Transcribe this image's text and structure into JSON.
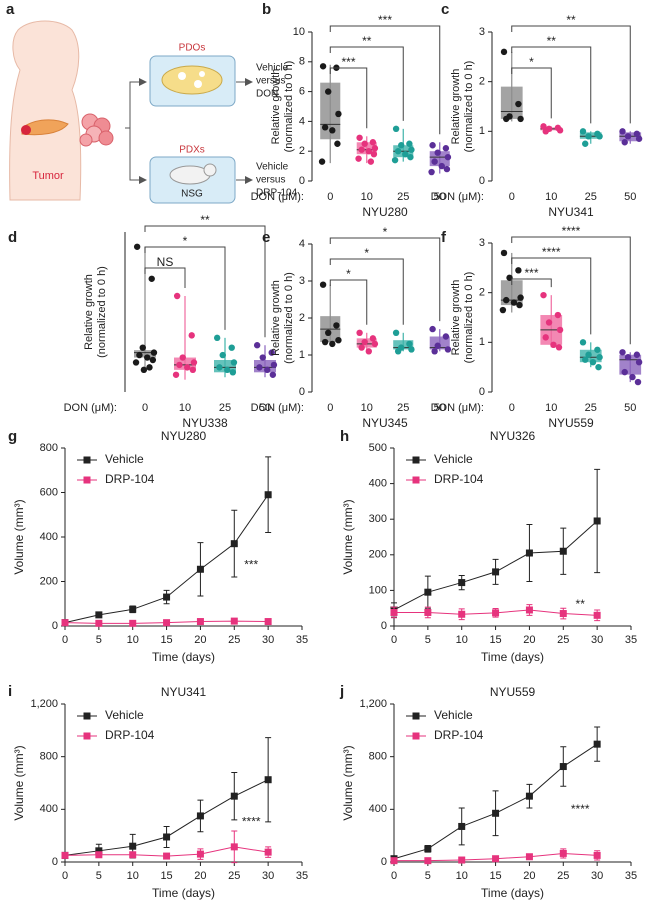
{
  "schematic": {
    "panel_label": "a",
    "tumor_label": "Tumor",
    "pdo": {
      "label": "PDOs",
      "treatment": [
        "Vehicle",
        "versus",
        "DON"
      ]
    },
    "pdx": {
      "label": "PDXs",
      "host": "NSG",
      "treatment": [
        "Vehicle",
        "versus",
        "DRP-104"
      ]
    }
  },
  "chart_data": [
    {
      "type": "box",
      "panel_label": "b",
      "xlabel": "NYU280",
      "category_label": "DON (μM):",
      "categories": [
        "0",
        "10",
        "25",
        "50"
      ],
      "ylabel": [
        "Relative growth",
        "(normalized to 0 h)"
      ],
      "ylim": [
        0,
        10
      ],
      "yticks": [
        0,
        2,
        4,
        6,
        8,
        10
      ],
      "colors": [
        "#8c8c8c",
        "#f06aa0",
        "#3fb3aa",
        "#8a63bd"
      ],
      "point_colors": [
        "#1a1a1a",
        "#e6337d",
        "#1e9e96",
        "#5b2f98"
      ],
      "boxes": [
        {
          "whislo": 1.2,
          "q1": 2.8,
          "med": 3.8,
          "q3": 6.6,
          "whishi": 7.8,
          "points": [
            7.7,
            7.6,
            6.0,
            4.5,
            3.6,
            3.4,
            2.5,
            1.3
          ]
        },
        {
          "whislo": 1.2,
          "q1": 1.8,
          "med": 2.1,
          "q3": 2.6,
          "whishi": 3.0,
          "points": [
            2.9,
            2.6,
            2.5,
            2.2,
            2.1,
            2.0,
            1.8,
            1.5,
            1.3
          ]
        },
        {
          "whislo": 1.3,
          "q1": 1.6,
          "med": 2.0,
          "q3": 2.4,
          "whishi": 3.5,
          "points": [
            3.5,
            2.5,
            2.4,
            2.1,
            2.0,
            1.8,
            1.6,
            1.4
          ]
        },
        {
          "whislo": 0.5,
          "q1": 1.0,
          "med": 1.6,
          "q3": 2.0,
          "whishi": 2.6,
          "points": [
            2.4,
            2.2,
            1.9,
            1.6,
            1.3,
            1.0,
            0.8,
            0.6
          ]
        }
      ],
      "significance": [
        null,
        "***",
        "**",
        "***"
      ]
    },
    {
      "type": "box",
      "panel_label": "c",
      "xlabel": "NYU341",
      "category_label": "DON (μM):",
      "categories": [
        "0",
        "10",
        "25",
        "50"
      ],
      "ylabel": [
        "Relative growth",
        "(normalized to 0 h)"
      ],
      "ylim": [
        0,
        3
      ],
      "yticks": [
        0,
        1,
        2,
        3
      ],
      "colors": [
        "#8c8c8c",
        "#f06aa0",
        "#3fb3aa",
        "#8a63bd"
      ],
      "point_colors": [
        "#1a1a1a",
        "#e6337d",
        "#1e9e96",
        "#5b2f98"
      ],
      "boxes": [
        {
          "whislo": 1.2,
          "q1": 1.25,
          "med": 1.4,
          "q3": 1.9,
          "whishi": 2.6,
          "points": [
            2.6,
            1.55,
            1.3,
            1.25,
            1.25
          ]
        },
        {
          "whislo": 1.0,
          "q1": 1.02,
          "med": 1.05,
          "q3": 1.08,
          "whishi": 1.1,
          "points": [
            1.1,
            1.07,
            1.05,
            1.02,
            1.0
          ]
        },
        {
          "whislo": 0.75,
          "q1": 0.85,
          "med": 0.9,
          "q3": 0.98,
          "whishi": 1.0,
          "points": [
            1.0,
            0.95,
            0.9,
            0.9,
            0.75
          ]
        },
        {
          "whislo": 0.75,
          "q1": 0.8,
          "med": 0.9,
          "q3": 0.98,
          "whishi": 1.0,
          "points": [
            1.0,
            0.95,
            0.9,
            0.85,
            0.78
          ]
        }
      ],
      "significance": [
        null,
        "*",
        "**",
        "**"
      ]
    },
    {
      "type": "box",
      "panel_label": "d",
      "xlabel": "NYU338",
      "category_label": "DON (μM):",
      "categories": [
        "0",
        "10",
        "25",
        "50"
      ],
      "ylabel": [
        "Relative growth",
        "(normalized to 0 h)"
      ],
      "ylim": [
        0,
        6.5
      ],
      "colors": [
        "#8c8c8c",
        "#f06aa0",
        "#3fb3aa",
        "#8a63bd"
      ],
      "point_colors": [
        "#1a1a1a",
        "#e6337d",
        "#1e9e96",
        "#5b2f98"
      ],
      "boxes": [
        {
          "whislo": 0.9,
          "q1": 1.4,
          "med": 1.6,
          "q3": 1.7,
          "whishi": 5.9,
          "points": [
            5.9,
            4.6,
            1.8,
            1.6,
            1.5,
            1.4,
            1.3,
            1.2,
            1.0,
            0.9
          ]
        },
        {
          "whislo": 0.5,
          "q1": 0.9,
          "med": 1.1,
          "q3": 1.4,
          "whishi": 3.9,
          "points": [
            3.9,
            2.3,
            1.4,
            1.2,
            1.1,
            1.0,
            0.9,
            0.7
          ]
        },
        {
          "whislo": 0.6,
          "q1": 0.8,
          "med": 1.0,
          "q3": 1.3,
          "whishi": 2.2,
          "points": [
            2.2,
            1.8,
            1.5,
            1.2,
            1.0,
            0.9,
            0.8
          ]
        },
        {
          "whislo": 0.6,
          "q1": 0.8,
          "med": 1.0,
          "q3": 1.3,
          "whishi": 1.9,
          "points": [
            1.9,
            1.6,
            1.4,
            1.1,
            1.0,
            0.9,
            0.7
          ]
        }
      ],
      "significance": [
        null,
        "NS",
        "*",
        "**"
      ]
    },
    {
      "type": "box",
      "panel_label": "e",
      "xlabel": "NYU345",
      "category_label": "DON (μM):",
      "categories": [
        "0",
        "10",
        "25",
        "50"
      ],
      "ylabel": [
        "Relative growth",
        "(normalized to 0 h)"
      ],
      "ylim": [
        0,
        4
      ],
      "yticks": [
        0,
        1,
        2,
        3,
        4
      ],
      "colors": [
        "#8c8c8c",
        "#f06aa0",
        "#3fb3aa",
        "#8a63bd"
      ],
      "point_colors": [
        "#1a1a1a",
        "#e6337d",
        "#1e9e96",
        "#5b2f98"
      ],
      "boxes": [
        {
          "whislo": 1.3,
          "q1": 1.35,
          "med": 1.7,
          "q3": 2.05,
          "whishi": 2.9,
          "points": [
            2.9,
            1.8,
            1.6,
            1.4,
            1.35,
            1.3
          ]
        },
        {
          "whislo": 1.1,
          "q1": 1.2,
          "med": 1.3,
          "q3": 1.45,
          "whishi": 1.6,
          "points": [
            1.6,
            1.45,
            1.35,
            1.3,
            1.2,
            1.1
          ]
        },
        {
          "whislo": 1.1,
          "q1": 1.15,
          "med": 1.2,
          "q3": 1.4,
          "whishi": 1.6,
          "points": [
            1.6,
            1.3,
            1.2,
            1.15,
            1.1
          ]
        },
        {
          "whislo": 1.1,
          "q1": 1.15,
          "med": 1.2,
          "q3": 1.5,
          "whishi": 1.7,
          "points": [
            1.7,
            1.5,
            1.25,
            1.15,
            1.1
          ]
        }
      ],
      "significance": [
        null,
        "*",
        "*",
        "*"
      ]
    },
    {
      "type": "box",
      "panel_label": "f",
      "xlabel": "NYU559",
      "category_label": "DON (μM):",
      "categories": [
        "0",
        "10",
        "25",
        "50"
      ],
      "ylabel": [
        "Relative growth",
        "(normalized to 0 h)"
      ],
      "ylim": [
        0,
        3
      ],
      "yticks": [
        0,
        1,
        2,
        3
      ],
      "colors": [
        "#8c8c8c",
        "#f06aa0",
        "#3fb3aa",
        "#8a63bd"
      ],
      "point_colors": [
        "#1a1a1a",
        "#e6337d",
        "#1e9e96",
        "#5b2f98"
      ],
      "boxes": [
        {
          "whislo": 1.6,
          "q1": 1.75,
          "med": 1.85,
          "q3": 2.25,
          "whishi": 2.8,
          "points": [
            2.8,
            2.45,
            2.3,
            1.9,
            1.85,
            1.8,
            1.75,
            1.65
          ]
        },
        {
          "whislo": 0.9,
          "q1": 0.95,
          "med": 1.25,
          "q3": 1.55,
          "whishi": 1.95,
          "points": [
            1.95,
            1.55,
            1.4,
            1.25,
            1.1,
            0.95,
            0.9
          ]
        },
        {
          "whislo": 0.5,
          "q1": 0.6,
          "med": 0.7,
          "q3": 0.85,
          "whishi": 1.0,
          "points": [
            1.0,
            0.85,
            0.75,
            0.7,
            0.65,
            0.6,
            0.5
          ]
        },
        {
          "whislo": 0.2,
          "q1": 0.35,
          "med": 0.65,
          "q3": 0.75,
          "whishi": 0.8,
          "points": [
            0.8,
            0.75,
            0.7,
            0.6,
            0.4,
            0.3,
            0.2
          ]
        }
      ],
      "significance": [
        null,
        "***",
        "****",
        "****"
      ]
    },
    {
      "type": "line",
      "panel_label": "g",
      "title": "NYU280",
      "xlabel": "Time (days)",
      "ylabel": "Volume (mm³)",
      "x": [
        0,
        5,
        10,
        15,
        20,
        25,
        30
      ],
      "xlim": [
        0,
        35
      ],
      "xticks": [
        0,
        5,
        10,
        15,
        20,
        25,
        30,
        35
      ],
      "ylim": [
        0,
        800
      ],
      "yticks": [
        0,
        200,
        400,
        600,
        800
      ],
      "legend": "upper left",
      "annotation": "***",
      "series": [
        {
          "name": "Vehicle",
          "color": "#222222",
          "values": [
            15,
            50,
            75,
            130,
            255,
            370,
            590
          ],
          "errors": [
            5,
            10,
            15,
            30,
            120,
            150,
            170
          ]
        },
        {
          "name": "DRP-104",
          "color": "#e6337d",
          "values": [
            15,
            12,
            12,
            15,
            20,
            22,
            20
          ],
          "errors": [
            3,
            3,
            3,
            5,
            5,
            5,
            5
          ]
        }
      ]
    },
    {
      "type": "line",
      "panel_label": "h",
      "title": "NYU326",
      "xlabel": "Time (days)",
      "ylabel": "Volume (mm³)",
      "x": [
        0,
        5,
        10,
        15,
        20,
        25,
        30
      ],
      "xlim": [
        0,
        35
      ],
      "xticks": [
        0,
        5,
        10,
        15,
        20,
        25,
        30,
        35
      ],
      "ylim": [
        0,
        500
      ],
      "yticks": [
        0,
        100,
        200,
        300,
        400,
        500
      ],
      "legend": "upper left",
      "annotation": "**",
      "series": [
        {
          "name": "Vehicle",
          "color": "#222222",
          "values": [
            45,
            95,
            122,
            152,
            205,
            210,
            295
          ],
          "errors": [
            20,
            45,
            20,
            35,
            80,
            65,
            145
          ]
        },
        {
          "name": "DRP-104",
          "color": "#e6337d",
          "values": [
            38,
            38,
            33,
            37,
            45,
            35,
            30
          ],
          "errors": [
            15,
            15,
            15,
            12,
            15,
            15,
            15
          ]
        }
      ]
    },
    {
      "type": "line",
      "panel_label": "i",
      "title": "NYU341",
      "xlabel": "Time (days)",
      "ylabel": "Volume (mm³)",
      "x": [
        0,
        5,
        10,
        15,
        20,
        25,
        30
      ],
      "xlim": [
        0,
        35
      ],
      "xticks": [
        0,
        5,
        10,
        15,
        20,
        25,
        30,
        35
      ],
      "ylim": [
        0,
        1200
      ],
      "yticks": [
        0,
        400,
        800,
        {
          "value": 1200,
          "label": "1,200"
        }
      ],
      "legend": "upper left",
      "annotation": "****",
      "series": [
        {
          "name": "Vehicle",
          "color": "#222222",
          "values": [
            50,
            85,
            120,
            190,
            350,
            500,
            625
          ],
          "errors": [
            20,
            50,
            90,
            80,
            120,
            180,
            320
          ]
        },
        {
          "name": "DRP-104",
          "color": "#e6337d",
          "values": [
            50,
            55,
            55,
            45,
            60,
            115,
            75
          ],
          "errors": [
            15,
            20,
            20,
            20,
            40,
            120,
            40
          ]
        }
      ]
    },
    {
      "type": "line",
      "panel_label": "j",
      "title": "NYU559",
      "xlabel": "Time (days)",
      "ylabel": "Volume (mm³)",
      "x": [
        0,
        5,
        10,
        15,
        20,
        25,
        30
      ],
      "xlim": [
        0,
        35
      ],
      "xticks": [
        0,
        5,
        10,
        15,
        20,
        25,
        30,
        35
      ],
      "ylim": [
        0,
        1200
      ],
      "yticks": [
        0,
        400,
        800,
        {
          "value": 1200,
          "label": "1,200"
        }
      ],
      "legend": "upper left",
      "annotation": "****",
      "series": [
        {
          "name": "Vehicle",
          "color": "#222222",
          "values": [
            25,
            100,
            270,
            370,
            500,
            725,
            895
          ],
          "errors": [
            10,
            25,
            140,
            170,
            90,
            150,
            130
          ]
        },
        {
          "name": "DRP-104",
          "color": "#e6337d",
          "values": [
            10,
            10,
            15,
            25,
            40,
            65,
            50
          ],
          "errors": [
            5,
            5,
            8,
            10,
            20,
            35,
            35
          ]
        }
      ]
    }
  ]
}
